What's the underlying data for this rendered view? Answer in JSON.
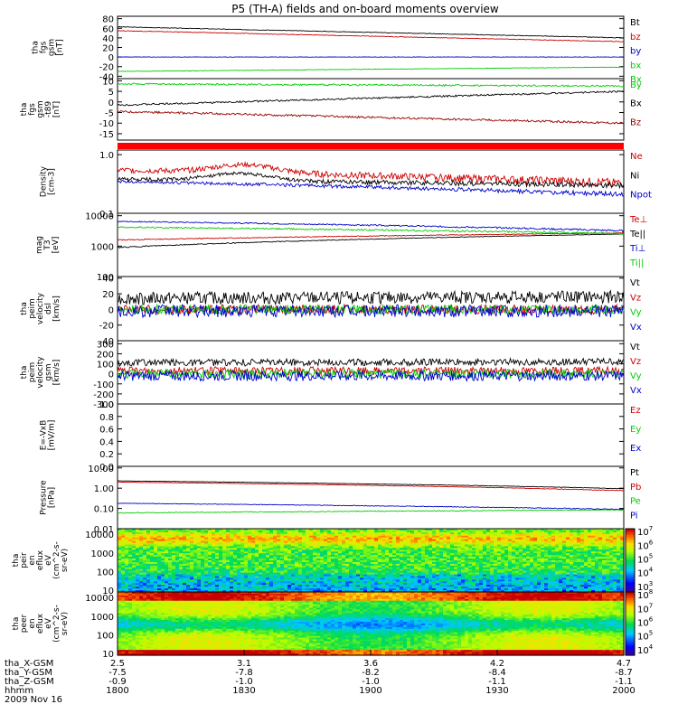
{
  "chart_data": {
    "type": "line",
    "title": "P5 (TH-A) fields and on-board moments overview",
    "x": {
      "ticks": [
        "1800",
        "1830",
        "1900",
        "1930",
        "2000"
      ],
      "ephemeris": [
        {
          "label": "tha_X-GSM",
          "values": [
            "2.5",
            "3.1",
            "3.6",
            "4.2",
            "4.7"
          ]
        },
        {
          "label": "tha_Y-GSM",
          "values": [
            "-7.5",
            "-7.8",
            "-8.2",
            "-8.4",
            "-8.7"
          ]
        },
        {
          "label": "tha_Z-GSM",
          "values": [
            "-0.9",
            "-1.0",
            "-1.0",
            "-1.1",
            "-1.1"
          ]
        },
        {
          "label": "hhmm",
          "values": [
            "1800",
            "1830",
            "1900",
            "1930",
            "2000"
          ]
        }
      ],
      "date": "2009 Nov 16"
    },
    "panels": [
      {
        "ylabel": [
          "tha",
          "fgs",
          "gsm",
          "[nT]"
        ],
        "scale": "linear",
        "ylim": [
          -45,
          85
        ],
        "ticks": [
          "80",
          "60",
          "40",
          "20",
          "0",
          "-20",
          "-40"
        ],
        "tick_values": [
          80,
          60,
          40,
          20,
          0,
          -20,
          -40
        ],
        "series": [
          {
            "name": "Bt",
            "color": "#000000",
            "start": 63,
            "end": 40,
            "noise": 0.6
          },
          {
            "name": "bz",
            "color": "#cc0000",
            "start": 55,
            "end": 32,
            "noise": 0.6
          },
          {
            "name": "by",
            "color": "#0000cc",
            "start": 0,
            "end": 0,
            "noise": 0.4
          },
          {
            "name": "bx",
            "color": "#00cc00",
            "start": -30,
            "end": -21,
            "noise": 0.5
          }
        ],
        "extra_label": {
          "text": "Bx",
          "color": "#00cc00"
        }
      },
      {
        "ylabel": [
          "tha",
          "fgs",
          "gsm",
          "-t89",
          "[nT]"
        ],
        "scale": "linear",
        "ylim": [
          -18,
          11
        ],
        "ticks": [
          "10",
          "5",
          "0",
          "-5",
          "-10",
          "-15"
        ],
        "tick_values": [
          10,
          5,
          0,
          -5,
          -10,
          -15
        ],
        "series": [
          {
            "name": "By",
            "color": "#00cc00",
            "start": 8.5,
            "end": 7.5,
            "noise": 0.4
          },
          {
            "name": "Bx",
            "color": "#000000",
            "start": -1.5,
            "end": 5,
            "noise": 0.4
          },
          {
            "name": "Bz",
            "color": "#990000",
            "start": -4.5,
            "end": -10,
            "noise": 0.5
          }
        ]
      },
      {
        "ylabel": [
          "Density",
          "[cm-3]"
        ],
        "scale": "log",
        "ylim": [
          0.1,
          1.2
        ],
        "ticks": [
          "1.0",
          "0.1"
        ],
        "tick_values": [
          1.0,
          0.1
        ],
        "series": [
          {
            "name": "Ne",
            "color": "#cc0000",
            "start": 0.55,
            "end": 0.33,
            "noise": 0.06
          },
          {
            "name": "Ni",
            "color": "#000000",
            "start": 0.38,
            "end": 0.3,
            "noise": 0.03
          },
          {
            "name": "Npot",
            "color": "#0000cc",
            "start": 0.35,
            "end": 0.21,
            "noise": 0.02
          }
        ]
      },
      {
        "ylabel": [
          "mag",
          "T3",
          "[eV]"
        ],
        "scale": "log",
        "ylim": [
          100,
          12000
        ],
        "ticks": [
          "10000",
          "1000",
          "100"
        ],
        "tick_values": [
          10000,
          1000,
          100
        ],
        "series": [
          {
            "name": "Te⊥",
            "color": "#cc0000",
            "start": 1600,
            "end": 2700,
            "noise": 60
          },
          {
            "name": "Te||",
            "color": "#000000",
            "start": 900,
            "end": 2500,
            "noise": 40
          },
          {
            "name": "Ti⊥",
            "color": "#0000cc",
            "start": 6500,
            "end": 3200,
            "noise": 250
          },
          {
            "name": "Ti||",
            "color": "#00cc00",
            "start": 4200,
            "end": 2600,
            "noise": 200
          }
        ]
      },
      {
        "ylabel": [
          "tha",
          "peim",
          "velocity",
          "dsl",
          "[km/s]"
        ],
        "scale": "linear",
        "ylim": [
          -40,
          42
        ],
        "ticks": [
          "40",
          "20",
          "0",
          "-20",
          "-40"
        ],
        "tick_values": [
          40,
          20,
          0,
          -20,
          -40
        ],
        "series": [
          {
            "name": "Vt",
            "color": "#000000",
            "start": 14,
            "end": 16,
            "noise": 8
          },
          {
            "name": "Vz",
            "color": "#cc0000",
            "start": 0,
            "end": 0,
            "noise": 6
          },
          {
            "name": "Vy",
            "color": "#00cc00",
            "start": 0,
            "end": 0,
            "noise": 6
          },
          {
            "name": "Vx",
            "color": "#0000cc",
            "start": -2,
            "end": -2,
            "noise": 8
          }
        ]
      },
      {
        "ylabel": [
          "tha",
          "peim",
          "velocity",
          "gsm",
          "[km/s]"
        ],
        "scale": "linear",
        "ylim": [
          -300,
          330
        ],
        "ticks": [
          "300",
          "200",
          "100",
          "0",
          "-100",
          "-200",
          "-300"
        ],
        "tick_values": [
          300,
          200,
          100,
          0,
          -100,
          -200,
          -300
        ],
        "series": [
          {
            "name": "Vt",
            "color": "#000000",
            "start": 110,
            "end": 120,
            "noise": 35
          },
          {
            "name": "Vz",
            "color": "#cc0000",
            "start": 30,
            "end": 30,
            "noise": 40
          },
          {
            "name": "Vy",
            "color": "#00cc00",
            "start": 0,
            "end": 0,
            "noise": 45
          },
          {
            "name": "Vx",
            "color": "#0000cc",
            "start": -20,
            "end": -20,
            "noise": 50
          }
        ]
      },
      {
        "ylabel": [
          "E=-VxB",
          "[mV/m]"
        ],
        "scale": "linear",
        "ylim": [
          0,
          1
        ],
        "ticks": [
          "1.0",
          "0.8",
          "0.6",
          "0.4",
          "0.2",
          "0.0"
        ],
        "tick_values": [
          1.0,
          0.8,
          0.6,
          0.4,
          0.2,
          0.0
        ],
        "series": [
          {
            "name": "Ez",
            "color": "#cc0000"
          },
          {
            "name": "Ey",
            "color": "#00cc00"
          },
          {
            "name": "Ex",
            "color": "#0000cc"
          }
        ]
      },
      {
        "ylabel": [
          "Pressure",
          "[nPa]"
        ],
        "scale": "log",
        "ylim": [
          0.01,
          12
        ],
        "ticks": [
          "10.00",
          "1.00",
          "0.10",
          "0.01"
        ],
        "tick_values": [
          10,
          1,
          0.1,
          0.01
        ],
        "series": [
          {
            "name": "Pt",
            "color": "#000000",
            "start": 2.3,
            "end": 0.95,
            "noise": 0.03
          },
          {
            "name": "Pb",
            "color": "#cc0000",
            "start": 2.0,
            "end": 0.75,
            "noise": 0.03
          },
          {
            "name": "Pe",
            "color": "#00cc00",
            "start": 0.06,
            "end": 0.085,
            "noise": 0.003
          },
          {
            "name": "Pi",
            "color": "#0000cc",
            "start": 0.18,
            "end": 0.09,
            "noise": 0.005
          }
        ]
      },
      {
        "ylabel": [
          "tha",
          "peir",
          "en",
          "eflux",
          "eV",
          "(cm^2-s-",
          "sr-eV)"
        ],
        "type": "heatmap",
        "scale": "log",
        "ylim": [
          8,
          20000
        ],
        "ticks": [
          "10000",
          "1000",
          "100",
          "10"
        ],
        "tick_values": [
          10000,
          1000,
          100,
          10
        ],
        "colorbar": {
          "ticks": [
            "10^7",
            "10^6",
            "10^5",
            "10^4",
            "10^3"
          ],
          "tick_exponents": [
            7,
            6,
            5,
            4,
            3
          ],
          "range": [
            2.6,
            7.2
          ]
        }
      },
      {
        "ylabel": [
          "tha",
          "peer",
          "en",
          "eflux",
          "eV",
          "(cm^2-s-",
          "sr-eV)"
        ],
        "type": "heatmap",
        "scale": "log",
        "ylim": [
          8,
          20000
        ],
        "ticks": [
          "10000",
          "1000",
          "100",
          "10"
        ],
        "tick_values": [
          10000,
          1000,
          100,
          10
        ],
        "colorbar": {
          "ticks": [
            "10^8",
            "10^7",
            "10^6",
            "10^5",
            "10^4"
          ],
          "tick_exponents": [
            8,
            7,
            6,
            5,
            4
          ],
          "range": [
            3.6,
            8.2
          ]
        }
      }
    ]
  }
}
